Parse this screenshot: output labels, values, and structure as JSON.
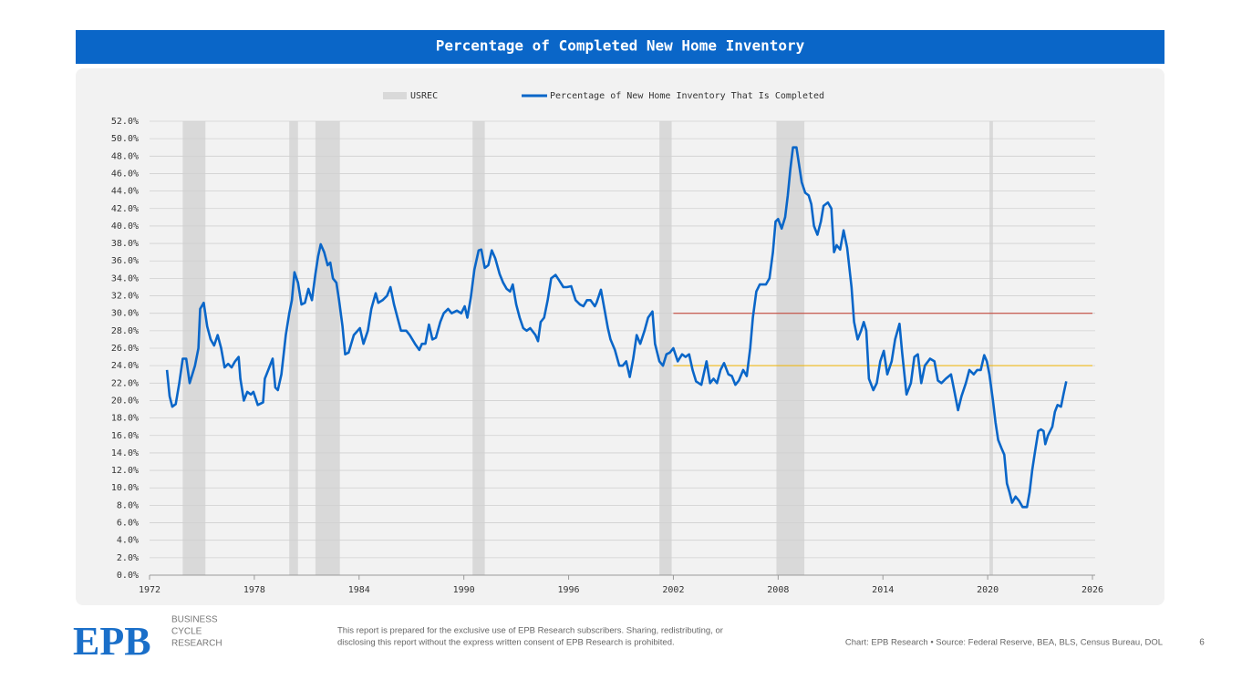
{
  "header": {
    "title": "Percentage of Completed New Home Inventory"
  },
  "chart_data": {
    "type": "line",
    "x": [
      1973.0,
      1973.15,
      1973.3,
      1973.5,
      1973.7,
      1973.9,
      1974.1,
      1974.3,
      1974.6,
      1974.8,
      1974.9,
      1975.1,
      1975.3,
      1975.5,
      1975.7,
      1975.9,
      1976.1,
      1976.3,
      1976.5,
      1976.7,
      1976.9,
      1977.1,
      1977.2,
      1977.4,
      1977.6,
      1977.8,
      1977.95,
      1978.2,
      1978.5,
      1978.6,
      1978.8,
      1979.05,
      1979.2,
      1979.35,
      1979.55,
      1979.8,
      1980.0,
      1980.15,
      1980.3,
      1980.5,
      1980.7,
      1980.9,
      1981.1,
      1981.3,
      1981.5,
      1981.65,
      1981.8,
      1982.0,
      1982.2,
      1982.35,
      1982.5,
      1982.7,
      1982.85,
      1983.05,
      1983.2,
      1983.4,
      1983.7,
      1984.05,
      1984.25,
      1984.5,
      1984.7,
      1984.95,
      1985.1,
      1985.35,
      1985.6,
      1985.8,
      1986.0,
      1986.2,
      1986.4,
      1986.7,
      1986.9,
      1987.2,
      1987.45,
      1987.6,
      1987.8,
      1988.0,
      1988.2,
      1988.4,
      1988.65,
      1988.85,
      1989.1,
      1989.3,
      1989.6,
      1989.85,
      1990.05,
      1990.2,
      1990.4,
      1990.6,
      1990.85,
      1991.0,
      1991.2,
      1991.4,
      1991.6,
      1991.8,
      1992.05,
      1992.25,
      1992.45,
      1992.65,
      1992.8,
      1993.0,
      1993.2,
      1993.4,
      1993.6,
      1993.8,
      1994.1,
      1994.25,
      1994.4,
      1994.6,
      1994.8,
      1995.0,
      1995.25,
      1995.45,
      1995.7,
      1995.9,
      1996.15,
      1996.4,
      1996.65,
      1996.85,
      1997.05,
      1997.25,
      1997.5,
      1997.6,
      1997.85,
      1998.05,
      1998.25,
      1998.4,
      1998.65,
      1998.9,
      1999.1,
      1999.3,
      1999.5,
      1999.7,
      1999.9,
      2000.1,
      2000.35,
      2000.55,
      2000.8,
      2000.95,
      2001.2,
      2001.4,
      2001.6,
      2001.8,
      2002.0,
      2002.25,
      2002.5,
      2002.7,
      2002.9,
      2003.1,
      2003.3,
      2003.6,
      2003.9,
      2004.1,
      2004.3,
      2004.5,
      2004.7,
      2004.9,
      2005.15,
      2005.35,
      2005.55,
      2005.75,
      2006.0,
      2006.2,
      2006.4,
      2006.55,
      2006.75,
      2006.95,
      2007.3,
      2007.5,
      2007.7,
      2007.85,
      2008.0,
      2008.2,
      2008.4,
      2008.55,
      2008.7,
      2008.85,
      2009.05,
      2009.2,
      2009.35,
      2009.55,
      2009.75,
      2009.9,
      2010.05,
      2010.25,
      2010.45,
      2010.6,
      2010.85,
      2011.05,
      2011.2,
      2011.35,
      2011.55,
      2011.75,
      2011.95,
      2012.2,
      2012.35,
      2012.55,
      2012.75,
      2012.9,
      2013.05,
      2013.2,
      2013.45,
      2013.65,
      2013.85,
      2014.05,
      2014.25,
      2014.5,
      2014.7,
      2014.95,
      2015.1,
      2015.35,
      2015.6,
      2015.8,
      2016.0,
      2016.2,
      2016.4,
      2016.7,
      2016.95,
      2017.15,
      2017.35,
      2017.6,
      2017.9,
      2018.1,
      2018.3,
      2018.5,
      2018.75,
      2018.95,
      2019.2,
      2019.4,
      2019.6,
      2019.8,
      2019.95,
      2020.1,
      2020.3,
      2020.45,
      2020.6,
      2020.8,
      2020.95,
      2021.1,
      2021.25,
      2021.4,
      2021.6,
      2021.8,
      2022.0,
      2022.25,
      2022.4,
      2022.55,
      2022.7,
      2022.9,
      2023.05,
      2023.2,
      2023.3,
      2023.45,
      2023.7,
      2023.85,
      2024.0,
      2024.2,
      2024.35,
      2024.5
    ],
    "series": [
      {
        "name": "Percentage of New Home Inventory That Is Completed",
        "color": "#0a66c8",
        "values": [
          23.5,
          20.5,
          19.3,
          19.6,
          22,
          24.8,
          24.8,
          22,
          24,
          26,
          30.5,
          31.2,
          28.5,
          27,
          26.3,
          27.5,
          26,
          23.8,
          24.2,
          23.8,
          24.5,
          25,
          22.5,
          20,
          21,
          20.7,
          21,
          19.5,
          19.8,
          22.5,
          23.5,
          24.8,
          21.5,
          21.2,
          23,
          27.5,
          30,
          31.5,
          34.7,
          33.5,
          31,
          31.2,
          32.8,
          31.5,
          34.5,
          36.5,
          37.9,
          37,
          35.5,
          35.8,
          34,
          33.5,
          31.5,
          28.5,
          25.3,
          25.5,
          27.5,
          28.3,
          26.5,
          28,
          30.5,
          32.3,
          31.2,
          31.5,
          32,
          33,
          31,
          29.5,
          28,
          28,
          27.5,
          26.5,
          25.8,
          26.5,
          26.5,
          28.7,
          27,
          27.2,
          29,
          30,
          30.5,
          30,
          30.3,
          30,
          30.8,
          29.5,
          31.8,
          35,
          37.2,
          37.3,
          35.2,
          35.5,
          37.2,
          36.3,
          34.5,
          33.5,
          32.8,
          32.5,
          33.3,
          31,
          29.5,
          28.3,
          28,
          28.3,
          27.5,
          26.8,
          29,
          29.5,
          31.5,
          34,
          34.4,
          33.8,
          33,
          33,
          33.1,
          31.5,
          31,
          30.8,
          31.5,
          31.5,
          30.8,
          31.2,
          32.7,
          30.5,
          28.3,
          27,
          25.8,
          24,
          24,
          24.5,
          22.7,
          24.8,
          27.5,
          26.5,
          28,
          29.5,
          30.2,
          26.5,
          24.5,
          24,
          25.3,
          25.5,
          26,
          24.5,
          25.3,
          25,
          25.3,
          23.5,
          22.2,
          21.8,
          24.5,
          22,
          22.5,
          22,
          23.5,
          24.3,
          23,
          22.8,
          21.8,
          22.3,
          23.5,
          22.8,
          26,
          29.5,
          32.5,
          33.3,
          33.3,
          34,
          37,
          40.5,
          40.8,
          39.7,
          41,
          43.5,
          46.5,
          49,
          49,
          47,
          45,
          43.8,
          43.5,
          42.5,
          40,
          39,
          40.5,
          42.3,
          42.7,
          42,
          37,
          37.8,
          37.3,
          39.5,
          37.5,
          33,
          29,
          27,
          28,
          29,
          28,
          22.5,
          21.2,
          22,
          24.5,
          25.7,
          23,
          24.5,
          27,
          28.8,
          25.5,
          20.7,
          22,
          25,
          25.3,
          22,
          24,
          24.8,
          24.5,
          22.3,
          22,
          22.5,
          23,
          21,
          18.9,
          20.5,
          22,
          23.5,
          23,
          23.5,
          23.5,
          25.2,
          24.5,
          23,
          20,
          17.5,
          15.5,
          14.5,
          13.8,
          10.5,
          9.5,
          8.3,
          9,
          8.5,
          7.8,
          7.8,
          9.5,
          12,
          14,
          16.5,
          16.7,
          16.5,
          15,
          16,
          17,
          18.7,
          19.5,
          19.3,
          20.8,
          22.2
        ]
      }
    ],
    "recessions": {
      "name": "USREC",
      "color": "#d9d9d9",
      "ranges": [
        [
          1973.9,
          1975.2
        ],
        [
          1980.0,
          1980.5
        ],
        [
          1981.5,
          1982.9
        ],
        [
          1990.5,
          1991.2
        ],
        [
          2001.2,
          2001.9
        ],
        [
          2007.9,
          2009.5
        ],
        [
          2020.1,
          2020.3
        ]
      ]
    },
    "reference_lines": [
      {
        "value": 30,
        "color": "#c0392b",
        "x": [
          2002,
          2026
        ]
      },
      {
        "value": 24,
        "color": "#f0b400",
        "x": [
          2002,
          2026
        ]
      }
    ],
    "xlim": [
      1972,
      2026
    ],
    "xticks": [
      1972,
      1978,
      1984,
      1990,
      1996,
      2002,
      2008,
      2014,
      2020,
      2026
    ],
    "ylim": [
      0,
      52
    ],
    "yticks": [
      {
        "value": 0,
        "label": "0.0%"
      },
      {
        "value": 2,
        "label": "2.0%"
      },
      {
        "value": 4,
        "label": "4.0%"
      },
      {
        "value": 6,
        "label": "6.0%"
      },
      {
        "value": 8,
        "label": "8.0%"
      },
      {
        "value": 10,
        "label": "10.0%"
      },
      {
        "value": 12,
        "label": "12.0%"
      },
      {
        "value": 14,
        "label": "14.0%"
      },
      {
        "value": 16,
        "label": "16.0%"
      },
      {
        "value": 18,
        "label": "18.0%"
      },
      {
        "value": 20,
        "label": "20.0%"
      },
      {
        "value": 22,
        "label": "22.0%"
      },
      {
        "value": 24,
        "label": "24.0%"
      },
      {
        "value": 26,
        "label": "26.0%"
      },
      {
        "value": 28,
        "label": "28.0%"
      },
      {
        "value": 30,
        "label": "30.0%"
      },
      {
        "value": 32,
        "label": "32.0%"
      },
      {
        "value": 34,
        "label": "34.0%"
      },
      {
        "value": 36,
        "label": "36.0%"
      },
      {
        "value": 38,
        "label": "38.0%"
      },
      {
        "value": 40,
        "label": "40.0%"
      },
      {
        "value": 42,
        "label": "42.0%"
      },
      {
        "value": 44,
        "label": "44.0%"
      },
      {
        "value": 46,
        "label": "46.0%"
      },
      {
        "value": 48,
        "label": "48.0%"
      },
      {
        "value": 50,
        "label": "50.0%"
      },
      {
        "value": 52,
        "label": "52.0%"
      }
    ],
    "grid": true,
    "legend": "top"
  },
  "footer": {
    "logo": "EPB",
    "tagline": [
      "BUSINESS",
      "CYCLE",
      "RESEARCH"
    ],
    "disclaimer": [
      "This report is prepared for the exclusive use of EPB Research subscribers. Sharing, redistributing, or",
      "disclosing this report without the express written consent of EPB Research is prohibited."
    ],
    "credit": "Chart: EPB Research  •  Source: Federal Reserve, BEA, BLS, Census Bureau, DOL",
    "page": 6
  }
}
